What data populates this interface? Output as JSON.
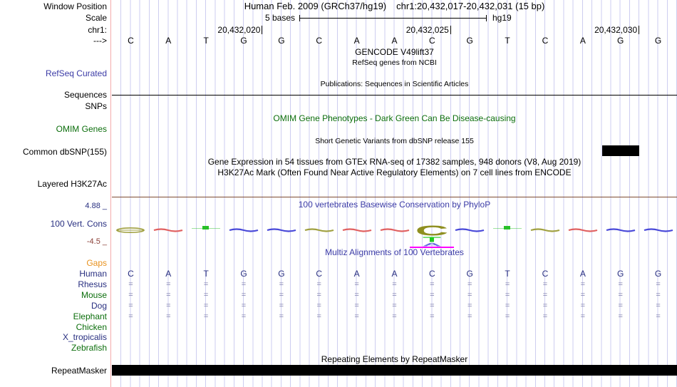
{
  "colors": {
    "grid": "#cdcdf0",
    "margin_line": "#f5abab",
    "navy": "#282f80",
    "green": "#0c6e0c",
    "orange": "#e8921e",
    "title_blue": "#3b3ba6",
    "maroon": "#8b4038",
    "match_gray": "#7d7dab",
    "wave_red": "#e06060",
    "wave_blue": "#4848d8",
    "wave_olive": "#a0a040",
    "dot_green": "#28c028",
    "logo_c": "#8f8f20",
    "logo_t": "#22cc22",
    "logo_a": "#6a6ae0",
    "logo_underline": "#ff00ff",
    "feature_black": "#000000",
    "separator_brown": "#7d4b32"
  },
  "header": {
    "row_labels": {
      "window_position": "Window Position",
      "scale": "Scale",
      "chromosome": "chr1:",
      "direction_arrow": "--->"
    },
    "assembly_title": "Human Feb. 2009 (GRCh37/hg19)",
    "position_title": "chr1:20,432,017-20,432,031 (15 bp)",
    "scale_text": "5 bases",
    "assembly_short": "hg19",
    "ruler_marks": [
      {
        "label": "20,432,020",
        "boundary": 4
      },
      {
        "label": "20,432,025",
        "boundary": 9
      },
      {
        "label": "20,432,030",
        "boundary": 14
      }
    ],
    "sequence": [
      "C",
      "A",
      "T",
      "G",
      "G",
      "C",
      "A",
      "A",
      "C",
      "G",
      "T",
      "C",
      "A",
      "G",
      "G"
    ]
  },
  "tracks": {
    "gencode": {
      "title": "GENCODE V49lift37",
      "subtitle": "RefSeq genes from NCBI",
      "left_label": "RefSeq Curated"
    },
    "publications_title": "Publications: Sequences in Scientific Articles",
    "sequences_label": "Sequences",
    "snps_label": "SNPs",
    "omim": {
      "title": "OMIM Gene Phenotypes - Dark Green Can Be Disease-causing",
      "left_label": "OMIM Genes"
    },
    "dbsnp": {
      "title": "Short Genetic Variants from dbSNP release 155",
      "left_label": "Common dbSNP(155)"
    },
    "gtex_title": "Gene Expression in 54 tissues from GTEx RNA-seq of 17382 samples, 948 donors (V8, Aug 2019)",
    "h3k27ac_title": "H3K27Ac Mark (Often Found Near Active Regulatory Elements) on 7 cell lines from ENCODE",
    "h3k27ac_left_label": "Layered H3K27Ac",
    "conservation": {
      "title": "100 vertebrates Basewise Conservation by PhyloP",
      "left_label": "100 Vert. Cons",
      "max_label": "4.88 _",
      "min_label": "-4.5 _",
      "marks": [
        "lens-olive",
        "wave-red",
        "dot-green",
        "wave-blue",
        "wave-blue",
        "wave-olive",
        "wave-red",
        "wave-red",
        "logo",
        "wave-blue",
        "dot-green",
        "wave-olive",
        "wave-red",
        "wave-blue",
        "wave-blue"
      ],
      "logo": {
        "top_letter": "C",
        "mid_letter": "T",
        "low_letter": "A"
      }
    },
    "multiz": {
      "title": "Multiz Alignments of 100 Vertebrates",
      "match_symbol": "=",
      "rows": [
        {
          "name": "Gaps",
          "color_key": "orange",
          "content": "none"
        },
        {
          "name": "Human",
          "color_key": "navy",
          "content": "bases"
        },
        {
          "name": "Rhesus",
          "color_key": "navy",
          "content": "match"
        },
        {
          "name": "Mouse",
          "color_key": "green",
          "content": "match"
        },
        {
          "name": "Dog",
          "color_key": "navy",
          "content": "match"
        },
        {
          "name": "Elephant",
          "color_key": "green",
          "content": "match"
        },
        {
          "name": "Chicken",
          "color_key": "green",
          "content": "none"
        },
        {
          "name": "X_tropicalis",
          "color_key": "navy",
          "content": "none"
        },
        {
          "name": "Zebrafish",
          "color_key": "green",
          "content": "none"
        }
      ]
    },
    "repeatmasker": {
      "title": "Repeating Elements by RepeatMasker",
      "left_label": "RepeatMasker"
    }
  }
}
